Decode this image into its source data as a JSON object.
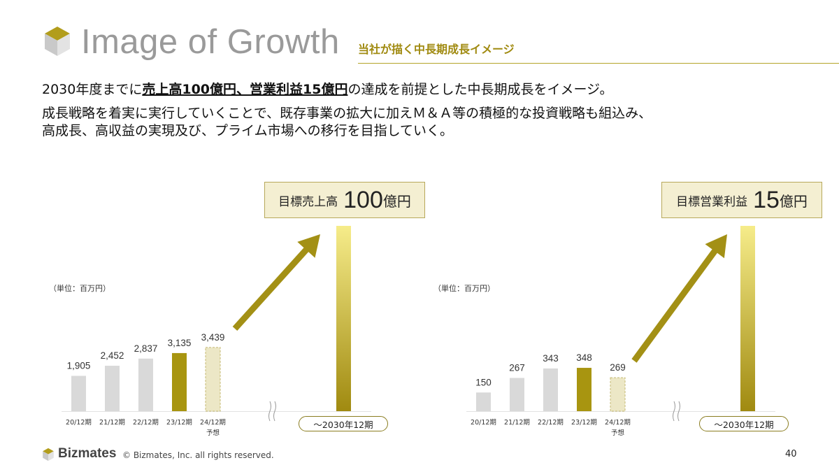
{
  "header": {
    "title": "Image of Growth",
    "subtitle": "当社が描く中長期成長イメージ"
  },
  "lead": {
    "prefix": "2030年度までに",
    "emphasis": "売上高100億円、営業利益15億円",
    "suffix": "の達成を前提とした中長期成長をイメージ。"
  },
  "body": {
    "line1": "成長戦略を着実に実行していくことで、既存事業の拡大に加えＭ＆Ａ等の積極的な投資戦略も組込み、",
    "line2": "高成長、高収益の実現及び、プライム市場への移行を目指していく。"
  },
  "colors": {
    "past_bar": "#d9d9d9",
    "current_bar": "#a89510",
    "forecast_fill": "#ece7c6",
    "forecast_border": "#c4b870",
    "target_gradient_top": "#f6ec8a",
    "target_gradient_bottom": "#a08a10",
    "arrow": "#a39015",
    "accent": "#a08a10"
  },
  "chart_data": [
    {
      "type": "bar",
      "unit": "（単位：百万円）",
      "categories": [
        "20/12期",
        "21/12期",
        "22/12期",
        "23/12期",
        "24/12期"
      ],
      "category_notes": [
        "",
        "",
        "",
        "",
        "予想"
      ],
      "values": [
        1905,
        2452,
        2837,
        3135,
        3439
      ],
      "value_labels": [
        "1,905",
        "2,452",
        "2,837",
        "3,135",
        "3,439"
      ],
      "styles": [
        "past",
        "past",
        "past",
        "current",
        "forecast"
      ],
      "target": {
        "label": "目標売上高",
        "value": "100",
        "unit": "億円",
        "period": "～2030年12期"
      }
    },
    {
      "type": "bar",
      "unit": "（単位：百万円）",
      "categories": [
        "20/12期",
        "21/12期",
        "22/12期",
        "23/12期",
        "24/12期"
      ],
      "category_notes": [
        "",
        "",
        "",
        "",
        "予想"
      ],
      "values": [
        150,
        267,
        343,
        348,
        269
      ],
      "value_labels": [
        "150",
        "267",
        "343",
        "348",
        "269"
      ],
      "styles": [
        "past",
        "past",
        "past",
        "current",
        "forecast"
      ],
      "target": {
        "label": "目標営業利益",
        "value": "15",
        "unit": "億円",
        "period": "～2030年12期"
      }
    }
  ],
  "footer": {
    "brand": "Bizmates",
    "copyright": "© Bizmates, Inc. all rights reserved.",
    "page": "40"
  }
}
